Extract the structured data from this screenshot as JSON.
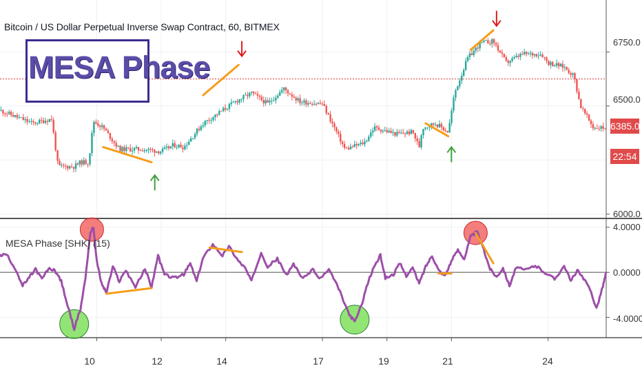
{
  "chart_data": [
    {
      "type": "candlestick",
      "title": "Bitcoin / US Dollar Perpetual Inverse Swap Contract, 60, BITMEX",
      "watermark": "MESA Phase",
      "ylabels": [
        "6750.0",
        "6500.0",
        "6000.0"
      ],
      "yticks": [
        6750,
        6500,
        6000
      ],
      "ylim": [
        5980,
        6990
      ],
      "last_price": "6385.0",
      "last_price_value": 6385,
      "countdown": "22:54",
      "reference_line": 6625,
      "reference_line_color": "#e04a4a",
      "up_color": "#26a69a",
      "down_color": "#ef5350",
      "x_dates": [
        "10",
        "12",
        "14",
        "17",
        "19",
        "21",
        "24"
      ],
      "close_path": [
        [
          7.0,
          6480
        ],
        [
          8.0,
          6420
        ],
        [
          8.6,
          6440
        ],
        [
          8.8,
          6220
        ],
        [
          9.3,
          6220
        ],
        [
          9.5,
          6240
        ],
        [
          9.75,
          6240
        ],
        [
          9.9,
          6430
        ],
        [
          10.2,
          6400
        ],
        [
          10.7,
          6300
        ],
        [
          11.4,
          6300
        ],
        [
          12.0,
          6290
        ],
        [
          12.4,
          6320
        ],
        [
          12.7,
          6310
        ],
        [
          13.3,
          6420
        ],
        [
          14.3,
          6520
        ],
        [
          14.8,
          6560
        ],
        [
          15.3,
          6510
        ],
        [
          15.8,
          6580
        ],
        [
          16.3,
          6520
        ],
        [
          17.0,
          6510
        ],
        [
          17.7,
          6300
        ],
        [
          18.3,
          6330
        ],
        [
          18.6,
          6400
        ],
        [
          19.3,
          6370
        ],
        [
          19.8,
          6380
        ],
        [
          20.0,
          6310
        ],
        [
          20.1,
          6400
        ],
        [
          20.5,
          6420
        ],
        [
          20.9,
          6380
        ],
        [
          21.1,
          6560
        ],
        [
          21.5,
          6720
        ],
        [
          21.9,
          6790
        ],
        [
          22.3,
          6800
        ],
        [
          22.7,
          6700
        ],
        [
          23.2,
          6740
        ],
        [
          23.8,
          6740
        ],
        [
          24.0,
          6700
        ],
        [
          24.5,
          6680
        ],
        [
          24.8,
          6640
        ],
        [
          25.0,
          6500
        ],
        [
          25.4,
          6400
        ],
        [
          25.8,
          6400
        ]
      ],
      "annotations": {
        "orange_lines": [
          [
            [
              10.2,
              6310
            ],
            [
              11.7,
              6240
            ]
          ],
          [
            [
              13.3,
              6550
            ],
            [
              14.4,
              6690
            ]
          ],
          [
            [
              20.2,
              6420
            ],
            [
              20.9,
              6360
            ]
          ],
          [
            [
              21.6,
              6760
            ],
            [
              22.3,
              6850
            ]
          ]
        ],
        "down_arrows": [
          [
            14.5,
            6730
          ],
          [
            22.4,
            6870
          ]
        ],
        "up_arrows": [
          [
            11.8,
            6180
          ],
          [
            21.0,
            6310
          ]
        ]
      }
    },
    {
      "type": "line",
      "series": [
        {
          "name": "MESA Phase [SHK] (15)",
          "color": "#9c4fa8"
        }
      ],
      "ylabels": [
        "4.0000",
        "0.0000",
        "-4.0000"
      ],
      "yticks": [
        4,
        0,
        -4
      ],
      "ylim": [
        -5.8,
        4.6
      ],
      "x_dates": [
        "10",
        "12",
        "14",
        "17",
        "19",
        "21",
        "24"
      ],
      "x_ticks": [
        10,
        12,
        14,
        17,
        19,
        21,
        24
      ],
      "xlim": [
        7.0,
        25.8
      ],
      "path": [
        [
          7.0,
          1.5
        ],
        [
          7.2,
          1.6
        ],
        [
          7.5,
          0.2
        ],
        [
          7.7,
          -1.2
        ],
        [
          7.9,
          -0.5
        ],
        [
          8.1,
          0.3
        ],
        [
          8.3,
          -0.6
        ],
        [
          8.5,
          0.3
        ],
        [
          8.7,
          0.2
        ],
        [
          8.9,
          -0.8
        ],
        [
          9.1,
          -3.0
        ],
        [
          9.3,
          -5.0
        ],
        [
          9.5,
          -3.2
        ],
        [
          9.65,
          -0.5
        ],
        [
          9.8,
          3.5
        ],
        [
          9.9,
          4.0
        ],
        [
          10.0,
          1.0
        ],
        [
          10.15,
          -1.0
        ],
        [
          10.3,
          -1.8
        ],
        [
          10.5,
          0.5
        ],
        [
          10.7,
          -0.8
        ],
        [
          10.9,
          0.2
        ],
        [
          11.2,
          -1.3
        ],
        [
          11.5,
          0.3
        ],
        [
          11.7,
          -1.3
        ],
        [
          11.9,
          1.5
        ],
        [
          12.1,
          -0.2
        ],
        [
          12.4,
          -0.5
        ],
        [
          12.7,
          -0.2
        ],
        [
          12.9,
          0.8
        ],
        [
          13.1,
          -0.8
        ],
        [
          13.3,
          1.3
        ],
        [
          13.6,
          2.5
        ],
        [
          13.9,
          1.5
        ],
        [
          14.1,
          2.3
        ],
        [
          14.4,
          1.0
        ],
        [
          14.6,
          0.4
        ],
        [
          14.8,
          -0.8
        ],
        [
          15.1,
          1.8
        ],
        [
          15.3,
          0.5
        ],
        [
          15.6,
          1.2
        ],
        [
          15.9,
          -0.3
        ],
        [
          16.1,
          0.8
        ],
        [
          16.4,
          -0.6
        ],
        [
          16.7,
          0.3
        ],
        [
          16.9,
          -0.6
        ],
        [
          17.2,
          0.2
        ],
        [
          17.5,
          -1.4
        ],
        [
          17.8,
          -3.6
        ],
        [
          18.0,
          -4.4
        ],
        [
          18.2,
          -3.0
        ],
        [
          18.4,
          -1.0
        ],
        [
          18.6,
          0.5
        ],
        [
          18.8,
          1.5
        ],
        [
          18.95,
          -0.5
        ],
        [
          19.2,
          -0.2
        ],
        [
          19.4,
          0.8
        ],
        [
          19.6,
          -0.3
        ],
        [
          19.8,
          0.4
        ],
        [
          20.0,
          -1.0
        ],
        [
          20.2,
          0.5
        ],
        [
          20.4,
          1.5
        ],
        [
          20.6,
          0.2
        ],
        [
          20.8,
          -0.3
        ],
        [
          21.0,
          1.0
        ],
        [
          21.2,
          2.0
        ],
        [
          21.4,
          1.2
        ],
        [
          21.6,
          3.2
        ],
        [
          21.8,
          3.6
        ],
        [
          22.0,
          2.0
        ],
        [
          22.2,
          0.3
        ],
        [
          22.4,
          -0.4
        ],
        [
          22.6,
          0.4
        ],
        [
          22.8,
          -1.2
        ],
        [
          23.0,
          0.4
        ],
        [
          23.3,
          0.2
        ],
        [
          23.6,
          0.6
        ],
        [
          23.9,
          0.0
        ],
        [
          24.2,
          -0.6
        ],
        [
          24.5,
          0.6
        ],
        [
          24.7,
          -0.8
        ],
        [
          24.9,
          0.2
        ],
        [
          25.1,
          -0.6
        ],
        [
          25.3,
          -1.5
        ],
        [
          25.5,
          -3.2
        ],
        [
          25.7,
          -1.2
        ],
        [
          25.8,
          0.0
        ]
      ],
      "annotations": {
        "orange_lines": [
          [
            [
              10.3,
              -1.9
            ],
            [
              11.7,
              -1.4
            ]
          ],
          [
            [
              13.5,
              2.2
            ],
            [
              14.5,
              1.8
            ]
          ],
          [
            [
              20.6,
              -0.1
            ],
            [
              21.0,
              -0.1
            ]
          ],
          [
            [
              21.75,
              3.5
            ],
            [
              22.3,
              0.8
            ]
          ]
        ],
        "red_circles": [
          [
            9.85,
            3.8
          ],
          [
            21.75,
            3.5
          ]
        ],
        "green_circles": [
          [
            9.3,
            -4.6
          ],
          [
            18.0,
            -4.2
          ]
        ]
      }
    }
  ],
  "indicator_label": "MESA Phase [SHK] (15)"
}
